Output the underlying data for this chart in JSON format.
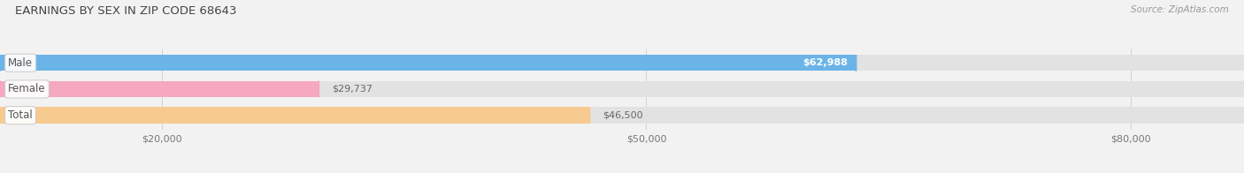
{
  "title": "EARNINGS BY SEX IN ZIP CODE 68643",
  "source": "Source: ZipAtlas.com",
  "categories": [
    "Male",
    "Female",
    "Total"
  ],
  "values": [
    62988,
    29737,
    46500
  ],
  "labels": [
    "$62,988",
    "$29,737",
    "$46,500"
  ],
  "label_inside": [
    true,
    false,
    false
  ],
  "bar_colors": [
    "#6ab4e8",
    "#f5a8be",
    "#f7ca90"
  ],
  "label_text_colors": [
    "#ffffff",
    "#888888",
    "#888888"
  ],
  "bg_color": "#f2f2f2",
  "bar_bg_color": "#e2e2e2",
  "bar_bg_edge_color": "#d0d0d0",
  "xlim_left": 10000,
  "xlim_right": 87000,
  "xticks": [
    20000,
    50000,
    80000
  ],
  "xticklabels": [
    "$20,000",
    "$50,000",
    "$80,000"
  ],
  "title_fontsize": 9.5,
  "source_fontsize": 7.5,
  "bar_height": 0.62,
  "figsize": [
    14.06,
    1.96
  ],
  "dpi": 100
}
